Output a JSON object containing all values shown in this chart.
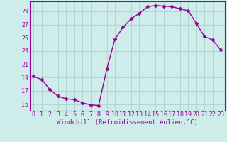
{
  "x": [
    0,
    1,
    2,
    3,
    4,
    5,
    6,
    7,
    8,
    9,
    10,
    11,
    12,
    13,
    14,
    15,
    16,
    17,
    18,
    19,
    20,
    21,
    22,
    23
  ],
  "y": [
    19.2,
    18.7,
    17.2,
    16.2,
    15.8,
    15.7,
    15.2,
    14.9,
    14.8,
    20.3,
    24.8,
    26.6,
    27.9,
    28.7,
    29.7,
    29.9,
    29.8,
    29.7,
    29.4,
    29.1,
    27.2,
    25.2,
    24.7,
    23.2
  ],
  "line_color": "#990099",
  "marker": "D",
  "marker_size": 2.5,
  "linewidth": 1.0,
  "xlabel": "Windchill (Refroidissement éolien,°C)",
  "xlabel_fontsize": 6.5,
  "yticks": [
    15,
    17,
    19,
    21,
    23,
    25,
    27,
    29
  ],
  "xlim": [
    -0.5,
    23.5
  ],
  "ylim": [
    14.0,
    30.5
  ],
  "bg_color": "#ceecea",
  "grid_color": "#aad4d0",
  "tick_fontsize": 6.0,
  "tick_color": "#990099",
  "spine_color": "#990099"
}
